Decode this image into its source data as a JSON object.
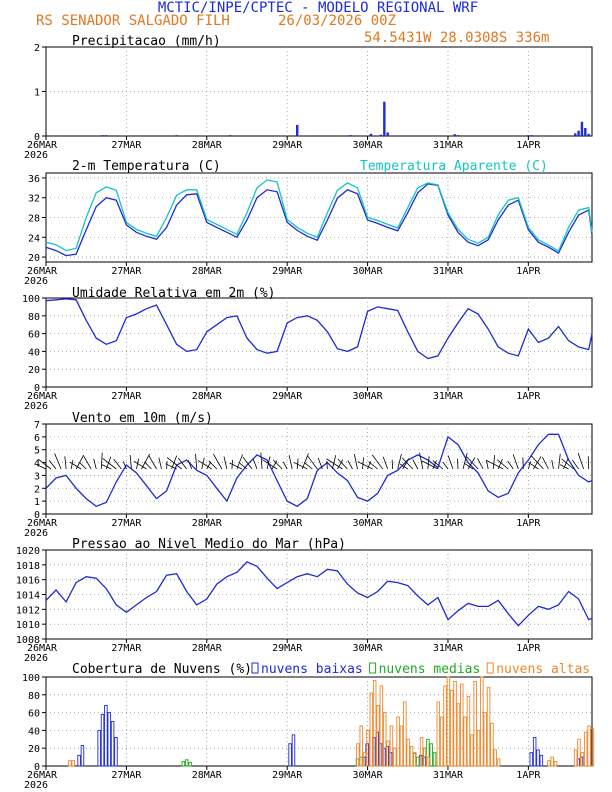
{
  "header": {
    "title": "MCTIC/INPE/CPTEC - MODELO REGIONAL WRF",
    "station": "RS SENADOR SALGADO FILH",
    "run": "26/03/2026 00Z",
    "coords": "54.5431W 28.0308S 336m"
  },
  "colors": {
    "blue": "#1d2bd6",
    "cyan": "#14c4c4",
    "green": "#1faa1f",
    "orange": "#f0872a"
  },
  "x_axis": {
    "first_label_year": "2026",
    "ticks": [
      {
        "hour": 0,
        "label": "26MAR"
      },
      {
        "hour": 24,
        "label": "27MAR"
      },
      {
        "hour": 48,
        "label": "28MAR"
      },
      {
        "hour": 72,
        "label": "29MAR"
      },
      {
        "hour": 96,
        "label": "30MAR"
      },
      {
        "hour": 120,
        "label": "31MAR"
      },
      {
        "hour": 144,
        "label": "1APR"
      }
    ],
    "range_hours": [
      0,
      163
    ]
  },
  "chart_data": [
    {
      "type": "bar",
      "id": "precip",
      "title": "Precipitacao (mm/h)",
      "ylim": [
        0,
        2
      ],
      "yticks": [
        0,
        1,
        2
      ],
      "x": [
        17,
        18,
        39,
        55,
        75,
        91,
        97,
        100,
        101,
        102,
        122,
        123,
        144,
        145,
        158,
        159,
        160,
        161,
        162
      ],
      "values": [
        0.02,
        0.02,
        0.02,
        0.02,
        0.25,
        0.02,
        0.05,
        0.03,
        0.77,
        0.08,
        0.04,
        0.02,
        0.02,
        0.02,
        0.06,
        0.12,
        0.32,
        0.18,
        0.05
      ]
    },
    {
      "type": "line",
      "id": "temperature",
      "title": "2-m Temperatura (C)",
      "legend_title": "Temperatura Aparente (C)",
      "ylim": [
        19,
        37
      ],
      "yticks": [
        20,
        24,
        28,
        32,
        36
      ],
      "series": [
        {
          "name": "2-m Temperatura",
          "color": "blue",
          "x": [
            0,
            3,
            6,
            9,
            12,
            15,
            18,
            21,
            24,
            27,
            30,
            33,
            36,
            39,
            42,
            45,
            48,
            51,
            54,
            57,
            60,
            63,
            66,
            69,
            72,
            75,
            78,
            81,
            84,
            87,
            90,
            93,
            96,
            99,
            102,
            105,
            108,
            111,
            114,
            117,
            120,
            123,
            126,
            129,
            132,
            135,
            138,
            141,
            144,
            147,
            150,
            153,
            156,
            159,
            162,
            163
          ],
          "values": [
            22,
            21.3,
            20.3,
            20.6,
            25.5,
            30.2,
            32.0,
            31.5,
            26.5,
            25.0,
            24.2,
            23.6,
            26.0,
            30.5,
            32.6,
            32.8,
            27.0,
            26.0,
            25.0,
            24.0,
            27.5,
            32.0,
            33.6,
            33.2,
            27.0,
            25.4,
            24.2,
            23.4,
            27.5,
            31.9,
            33.6,
            32.8,
            27.5,
            26.8,
            26.0,
            25.3,
            29.0,
            33.0,
            34.8,
            34.5,
            28.5,
            25.0,
            23.0,
            22.3,
            23.5,
            27.5,
            30.5,
            31.5,
            25.5,
            23.0,
            22.0,
            20.8,
            25.0,
            28.5,
            29.5,
            24.5
          ]
        },
        {
          "name": "Temperatura Aparente",
          "color": "cyan",
          "x": [
            0,
            3,
            6,
            9,
            12,
            15,
            18,
            21,
            24,
            27,
            30,
            33,
            36,
            39,
            42,
            45,
            48,
            51,
            54,
            57,
            60,
            63,
            66,
            69,
            72,
            75,
            78,
            81,
            84,
            87,
            90,
            93,
            96,
            99,
            102,
            105,
            108,
            111,
            114,
            117,
            120,
            123,
            126,
            129,
            132,
            135,
            138,
            141,
            144,
            147,
            150,
            153,
            156,
            159,
            162,
            163
          ],
          "values": [
            23,
            22.5,
            21.3,
            21.8,
            28.0,
            33.0,
            34.2,
            33.5,
            27.0,
            25.6,
            24.8,
            24.2,
            28.0,
            32.5,
            33.6,
            33.6,
            27.6,
            26.6,
            25.6,
            24.6,
            29.0,
            34.0,
            35.6,
            35.2,
            27.6,
            26.0,
            24.8,
            24.0,
            29.0,
            33.5,
            35.0,
            34.0,
            28.0,
            27.4,
            26.6,
            25.9,
            30.0,
            34.0,
            35.0,
            34.6,
            29.0,
            25.6,
            23.6,
            22.8,
            24.0,
            28.5,
            31.5,
            32.0,
            26.0,
            23.5,
            22.4,
            21.2,
            26.0,
            29.5,
            30.0,
            25.0
          ]
        }
      ]
    },
    {
      "type": "line",
      "id": "humidity",
      "title": "Umidade Relativa em 2m (%)",
      "ylim": [
        0,
        100
      ],
      "yticks": [
        0,
        20,
        40,
        60,
        80,
        100
      ],
      "series": [
        {
          "name": "Umidade Relativa",
          "color": "blue",
          "x": [
            0,
            3,
            6,
            9,
            12,
            15,
            18,
            21,
            24,
            27,
            30,
            33,
            36,
            39,
            42,
            45,
            48,
            51,
            54,
            57,
            60,
            63,
            66,
            69,
            72,
            75,
            78,
            81,
            84,
            87,
            90,
            93,
            96,
            99,
            102,
            105,
            108,
            111,
            114,
            117,
            120,
            123,
            126,
            129,
            132,
            135,
            138,
            141,
            144,
            147,
            150,
            153,
            156,
            159,
            162,
            163
          ],
          "values": [
            97,
            98,
            99,
            98,
            75,
            55,
            48,
            52,
            78,
            82,
            88,
            92,
            70,
            48,
            40,
            42,
            62,
            70,
            78,
            80,
            55,
            42,
            38,
            40,
            72,
            78,
            80,
            75,
            62,
            43,
            40,
            45,
            85,
            90,
            88,
            86,
            62,
            40,
            32,
            35,
            55,
            72,
            88,
            82,
            65,
            45,
            38,
            35,
            65,
            50,
            55,
            68,
            52,
            45,
            42,
            60
          ]
        }
      ]
    },
    {
      "type": "line",
      "id": "wind",
      "title": "Vento em 10m (m/s)",
      "ylim": [
        0,
        7
      ],
      "yticks": [
        0,
        1,
        2,
        3,
        4,
        5,
        6,
        7
      ],
      "series": [
        {
          "name": "Velocidade do vento",
          "color": "blue",
          "x": [
            0,
            3,
            6,
            9,
            12,
            15,
            18,
            21,
            24,
            27,
            30,
            33,
            36,
            39,
            42,
            45,
            48,
            51,
            54,
            57,
            60,
            63,
            66,
            69,
            72,
            75,
            78,
            81,
            84,
            87,
            90,
            93,
            96,
            99,
            102,
            105,
            108,
            111,
            114,
            117,
            120,
            123,
            126,
            129,
            132,
            135,
            138,
            141,
            144,
            147,
            150,
            153,
            156,
            159,
            162,
            163
          ],
          "values": [
            2.0,
            2.8,
            3.0,
            2.0,
            1.2,
            0.6,
            0.9,
            2.5,
            3.8,
            3.2,
            2.2,
            1.2,
            1.8,
            3.8,
            4.2,
            3.4,
            3.0,
            2.0,
            1.0,
            2.8,
            3.8,
            4.6,
            4.2,
            2.6,
            1.0,
            0.6,
            1.2,
            3.4,
            4.0,
            3.2,
            2.6,
            1.3,
            1.0,
            1.6,
            3.0,
            3.4,
            4.2,
            4.6,
            4.2,
            3.6,
            6.0,
            5.4,
            4.0,
            3.2,
            1.8,
            1.3,
            1.6,
            3.2,
            4.2,
            5.4,
            6.2,
            6.2,
            4.2,
            3.0,
            2.5,
            2.6
          ]
        }
      ]
    },
    {
      "type": "line",
      "id": "pressure",
      "title": "Pressao ao Nivel Medio do Mar (hPa)",
      "ylim": [
        1008,
        1020
      ],
      "yticks": [
        1008,
        1010,
        1012,
        1014,
        1016,
        1018,
        1020
      ],
      "series": [
        {
          "name": "Pressao",
          "color": "blue",
          "x": [
            0,
            3,
            6,
            9,
            12,
            15,
            18,
            21,
            24,
            27,
            30,
            33,
            36,
            39,
            42,
            45,
            48,
            51,
            54,
            57,
            60,
            63,
            66,
            69,
            72,
            75,
            78,
            81,
            84,
            87,
            90,
            93,
            96,
            99,
            102,
            105,
            108,
            111,
            114,
            117,
            120,
            123,
            126,
            129,
            132,
            135,
            138,
            141,
            144,
            147,
            150,
            153,
            156,
            159,
            162,
            163
          ],
          "values": [
            1013.2,
            1014.6,
            1013.0,
            1015.6,
            1016.4,
            1016.2,
            1014.8,
            1012.6,
            1011.6,
            1012.6,
            1013.6,
            1014.4,
            1016.6,
            1016.8,
            1014.4,
            1012.6,
            1013.4,
            1015.4,
            1016.4,
            1017.0,
            1018.4,
            1017.8,
            1016.2,
            1014.8,
            1015.6,
            1016.4,
            1016.8,
            1016.4,
            1017.4,
            1017.2,
            1015.4,
            1014.2,
            1013.6,
            1014.4,
            1015.8,
            1015.6,
            1015.2,
            1013.8,
            1012.6,
            1013.6,
            1010.6,
            1011.8,
            1012.8,
            1012.4,
            1012.4,
            1013.2,
            1011.4,
            1009.8,
            1011.2,
            1012.4,
            1012.0,
            1012.6,
            1014.4,
            1013.4,
            1010.6,
            1010.8
          ]
        }
      ]
    },
    {
      "type": "bar",
      "id": "clouds",
      "title": "Cobertura de Nuvens (%)",
      "ylim": [
        0,
        100
      ],
      "yticks": [
        0,
        20,
        40,
        60,
        80,
        100
      ],
      "series": [
        {
          "name": "nuvens baixas",
          "legend": "nuvens baixas",
          "color": "blue",
          "x": [
            10,
            11,
            16,
            17,
            18,
            19,
            20,
            21,
            73,
            74,
            95,
            96,
            98,
            99,
            100,
            101,
            102,
            103,
            112,
            113,
            145,
            146,
            147,
            148,
            159,
            160
          ],
          "values": [
            12,
            23,
            40,
            58,
            68,
            60,
            50,
            32,
            25,
            35,
            10,
            25,
            32,
            38,
            25,
            20,
            22,
            15,
            12,
            10,
            15,
            32,
            18,
            12,
            8,
            10
          ]
        },
        {
          "name": "nuvens medias",
          "legend": "nuvens medias",
          "color": "green",
          "x": [
            41,
            42,
            43,
            93,
            94,
            110,
            111,
            113,
            114,
            115,
            116
          ],
          "values": [
            5,
            7,
            4,
            8,
            10,
            14,
            10,
            20,
            30,
            25,
            15
          ]
        },
        {
          "name": "nuvens altas",
          "legend": "nuvens altas",
          "color": "orange",
          "x": [
            7,
            8,
            93,
            94,
            95,
            96,
            97,
            98,
            99,
            100,
            101,
            102,
            103,
            104,
            105,
            106,
            107,
            108,
            109,
            110,
            112,
            113,
            114,
            117,
            118,
            119,
            120,
            121,
            122,
            123,
            124,
            125,
            126,
            127,
            128,
            129,
            130,
            131,
            132,
            133,
            134,
            135,
            150,
            151,
            152,
            158,
            159,
            160,
            161,
            162,
            163
          ],
          "values": [
            6,
            6,
            25,
            45,
            15,
            40,
            82,
            96,
            68,
            90,
            60,
            28,
            45,
            20,
            55,
            45,
            72,
            30,
            22,
            15,
            32,
            20,
            10,
            72,
            55,
            90,
            100,
            85,
            95,
            70,
            92,
            55,
            78,
            35,
            95,
            40,
            100,
            60,
            88,
            48,
            18,
            8,
            6,
            10,
            5,
            18,
            30,
            15,
            38,
            45,
            42
          ]
        }
      ]
    }
  ]
}
